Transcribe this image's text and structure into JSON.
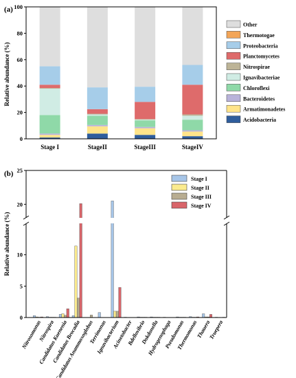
{
  "chart_data": [
    {
      "panel": "(a)",
      "type": "bar",
      "stacked": true,
      "ylabel": "Relative abundance (%)",
      "ylim": [
        0,
        100
      ],
      "yticks": [
        "0",
        "20",
        "40",
        "60",
        "80",
        "100"
      ],
      "categories": [
        "Stage I",
        "StageII",
        "StageIII",
        "StageIV"
      ],
      "series": [
        {
          "name": "Acidobacteria",
          "color": "#2f5d9c",
          "values": [
            1.0,
            4.0,
            3.0,
            2.0
          ]
        },
        {
          "name": "Armatimonadetes",
          "color": "#ffe48a",
          "values": [
            2.0,
            5.5,
            5.0,
            3.5
          ]
        },
        {
          "name": "Bacteroidetes",
          "color": "#b9b3da",
          "values": [
            1.0,
            1.0,
            1.0,
            1.0
          ]
        },
        {
          "name": "Chloroflexi",
          "color": "#8fd9a8",
          "values": [
            14.0,
            7.0,
            5.0,
            8.0
          ]
        },
        {
          "name": "Ignavibacteriae",
          "color": "#d0ece4",
          "values": [
            20.0,
            1.0,
            0.5,
            3.0
          ]
        },
        {
          "name": "Nitrospirae",
          "color": "#bdb497",
          "values": [
            0.5,
            0.5,
            0.5,
            1.0
          ]
        },
        {
          "name": "Planctomycetes",
          "color": "#de6b6b",
          "values": [
            2.5,
            3.5,
            13.0,
            22.5
          ]
        },
        {
          "name": "Proteobacteria",
          "color": "#a6cde9",
          "values": [
            14.0,
            16.5,
            11.5,
            15.0
          ]
        },
        {
          "name": "Thermotogae",
          "color": "#f3a557",
          "values": [
            0.0,
            0.0,
            0.0,
            0.0
          ]
        },
        {
          "name": "Other",
          "color": "#dedede",
          "values": [
            45.0,
            61.0,
            60.5,
            44.0
          ]
        }
      ],
      "legend": [
        "Other",
        "Thermotogae",
        "Proteobacteria",
        "Planctomycetes",
        "Nitrospirae",
        "Ignavibacteriae",
        "Chloroflexi",
        "Bacteroidetes",
        "Armatimonadetes",
        "Acidobacteria"
      ]
    },
    {
      "panel": "(b)",
      "type": "bar",
      "broken_axis": true,
      "ylabel": "Relative abundance (%)",
      "yticks": [
        "0",
        "5",
        "10",
        "20",
        "25"
      ],
      "categories": [
        "Nitrosomonas",
        "Nitrospira",
        "Candidatus Kuenenia",
        "Candidatus Brocadia",
        "Candidatus Anammoxoglobus",
        "Terrimonas",
        "Ignavibacterium",
        "Acinetobacter",
        "Bdellovibrio",
        "Dokdonella",
        "Hydrogenophaga",
        "Pseudomonas",
        "Thermomonas",
        "Thauera",
        "Truepera"
      ],
      "series": [
        {
          "name": "Stage I",
          "color": "#a7c6e8",
          "values": [
            0.3,
            0.15,
            0.5,
            0.3,
            0.0,
            0.8,
            20.5,
            0.05,
            0.1,
            0.1,
            0.05,
            0.1,
            0.15,
            0.6,
            0.05
          ]
        },
        {
          "name": "Stage II",
          "color": "#fbeb8e",
          "values": [
            0.1,
            0.05,
            0.6,
            11.4,
            0.0,
            0.0,
            1.0,
            0.0,
            0.05,
            0.05,
            0.0,
            0.05,
            0.05,
            0.1,
            0.0
          ]
        },
        {
          "name": "Stage III",
          "color": "#b8ad91",
          "values": [
            0.05,
            0.05,
            0.35,
            3.1,
            0.4,
            0.0,
            1.0,
            0.0,
            0.05,
            0.05,
            0.0,
            0.05,
            0.05,
            0.1,
            0.0
          ]
        },
        {
          "name": "Stage IV",
          "color": "#d9656a",
          "values": [
            0.1,
            0.05,
            1.4,
            20.1,
            0.0,
            0.0,
            4.8,
            0.0,
            0.05,
            0.05,
            0.0,
            0.05,
            0.1,
            0.5,
            0.05
          ]
        }
      ],
      "legend": [
        "Stage I",
        "Stage II",
        "Stage III",
        "Stage IV"
      ]
    }
  ]
}
